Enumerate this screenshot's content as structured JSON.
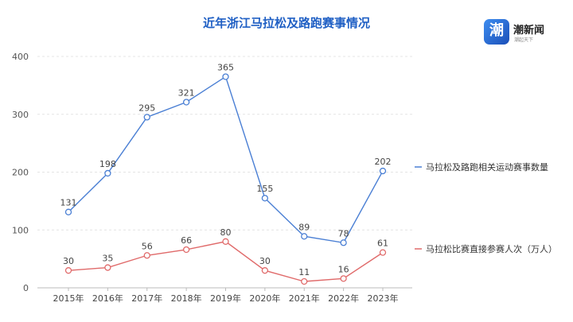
{
  "brand": {
    "logo_char": "潮",
    "name": "潮新闻",
    "slogan": "潮起天下",
    "accent": "#1f5fc4"
  },
  "chart_data": {
    "type": "line",
    "title": "近年浙江马拉松及路跑赛事情况",
    "categories": [
      "2015年",
      "2016年",
      "2017年",
      "2018年",
      "2019年",
      "2020年",
      "2021年",
      "2022年",
      "2023年"
    ],
    "ylim": [
      0,
      400
    ],
    "yticks": [
      0,
      100,
      200,
      300,
      400
    ],
    "grid": true,
    "legend_position": "right",
    "series": [
      {
        "name": "马拉松及路跑相关运动赛事数量",
        "color": "#4a7fd4",
        "values": [
          131,
          198,
          295,
          321,
          365,
          155,
          89,
          78,
          202
        ]
      },
      {
        "name": "马拉松比赛直接参赛人次（万人）",
        "color": "#e06a6a",
        "values": [
          30,
          35,
          56,
          66,
          80,
          30,
          11,
          16,
          61
        ]
      }
    ]
  }
}
